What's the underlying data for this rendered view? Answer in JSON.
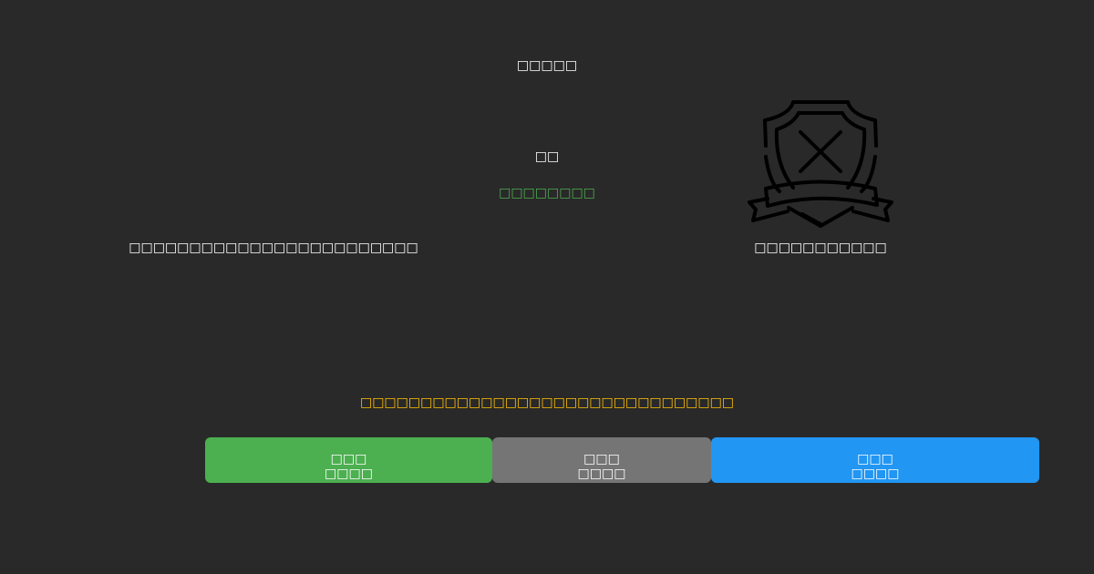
{
  "title": "□□□□□",
  "label": "□□",
  "status": "□□□□□□□□",
  "left_text": "□□□□□□□□□□□□□□□□□□□□□□□□",
  "right_text": "□□□□□□□□□□□",
  "warning": "□□□□□□□□□□□□□□□□□□□□□□□□□□□□□□□",
  "icon": "shield-x-icon",
  "colors": {
    "background": "#292929",
    "status": "#4caf50",
    "warning": "#ffc107",
    "primary": "#4caf50",
    "secondary": "#757575",
    "accent": "#2196f3"
  },
  "buttons": [
    {
      "line1": "□□□",
      "line2": "□□□□"
    },
    {
      "line1": "□□□",
      "line2": "□□□□"
    },
    {
      "line1": "□□□",
      "line2": "□□□□"
    }
  ]
}
